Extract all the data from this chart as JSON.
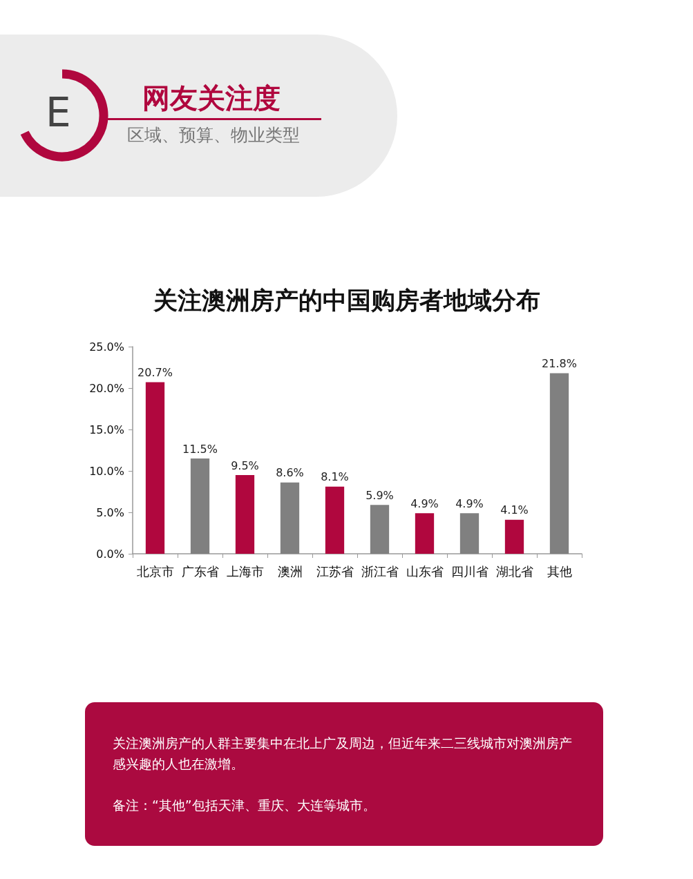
{
  "chart_data": {
    "type": "bar",
    "title": "关注澳洲房产的中国购房者地域分布",
    "categories": [
      "北京市",
      "广东省",
      "上海市",
      "澳洲",
      "江苏省",
      "浙江省",
      "山东省",
      "四川省",
      "湖北省",
      "其他"
    ],
    "values": [
      20.7,
      11.5,
      9.5,
      8.6,
      8.1,
      5.9,
      4.9,
      4.9,
      4.1,
      21.8
    ],
    "colors": [
      "#b0073e",
      "#808080",
      "#b0073e",
      "#808080",
      "#b0073e",
      "#808080",
      "#b0073e",
      "#808080",
      "#b0073e",
      "#808080"
    ],
    "value_labels": [
      "20.7%",
      "11.5%",
      "9.5%",
      "8.6%",
      "8.1%",
      "5.9%",
      "4.9%",
      "4.9%",
      "4.1%",
      "21.8%"
    ],
    "ylim": [
      0,
      25
    ],
    "yticks": [
      {
        "value": 0,
        "label": "0.0%"
      },
      {
        "value": 5,
        "label": "5.0%"
      },
      {
        "value": 10,
        "label": "10.0%"
      },
      {
        "value": 15,
        "label": "15.0%"
      },
      {
        "value": 20,
        "label": "20.0%"
      },
      {
        "value": 25,
        "label": "25.0%"
      }
    ],
    "annotations": [
      "E",
      "网友关注度",
      "区域、预算、物业类型",
      "关注澳洲房产的人群主要集中在北上广及周边，但近年来二三线城市对澳洲房产感兴趣的人也在激增。",
      "备注：“其他”包括天津、重庆、大连等城市。"
    ]
  }
}
